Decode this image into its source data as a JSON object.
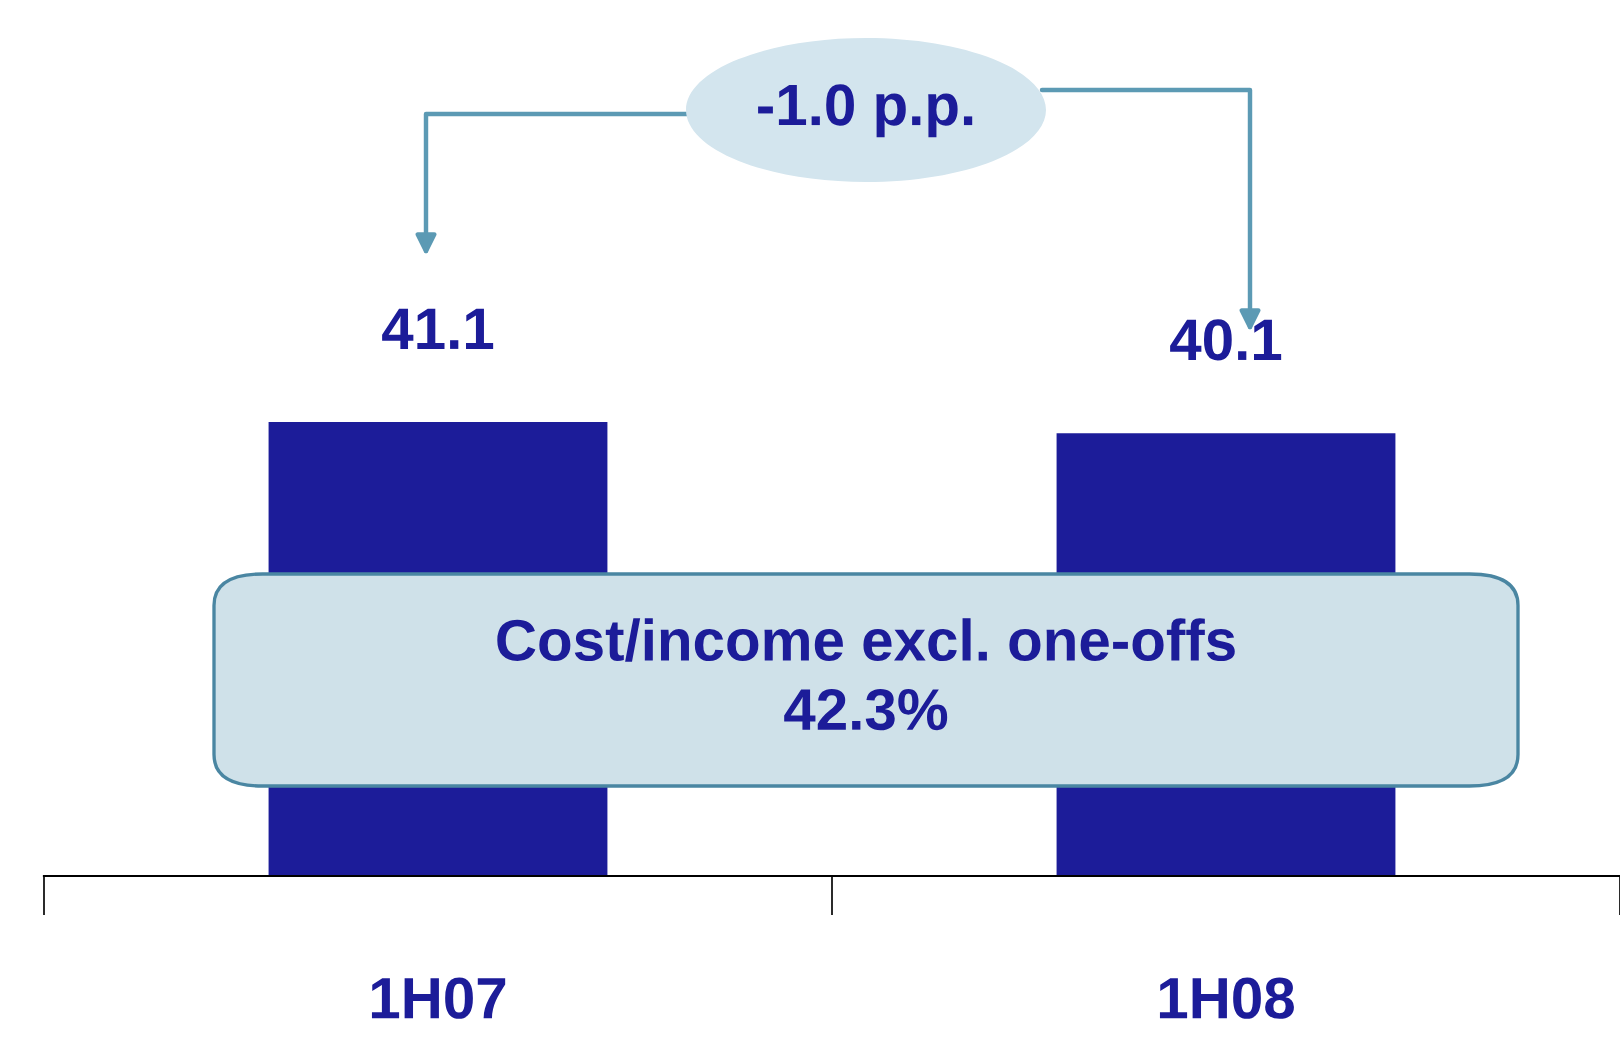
{
  "chart_data": {
    "type": "bar",
    "categories": [
      "1H07",
      "1H08"
    ],
    "values": [
      41.1,
      40.1
    ],
    "color": "#1c1c99",
    "data_labels": true,
    "tick_labels": "x",
    "grid": false,
    "legend": false,
    "annotations": [
      "-1.0 p.p.",
      "Cost/income excl. one-offs\n42.3%"
    ]
  }
}
